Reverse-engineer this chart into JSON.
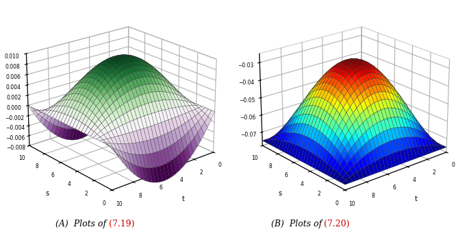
{
  "t_range": [
    0,
    10
  ],
  "x_range": [
    0,
    10
  ],
  "n_points": 30,
  "plot1": {
    "zlim": [
      -0.008,
      0.01
    ],
    "zticks": [
      -0.008,
      -0.006,
      -0.004,
      -0.002,
      0,
      0.002,
      0.004,
      0.006,
      0.008,
      0.01
    ],
    "xlabel": "t",
    "ylabel": "s",
    "colormap": "PRGn",
    "elev": 22,
    "azim": 50,
    "A": 0.0085,
    "caption_a": "(A)  Plots of ",
    "ref_a": "(7.19)"
  },
  "plot2": {
    "zlim": [
      -0.078,
      -0.025
    ],
    "zticks": [
      -0.07,
      -0.06,
      -0.05,
      -0.04,
      -0.03
    ],
    "xlabel": "t",
    "ylabel": "s",
    "colormap": "jet",
    "elev": 22,
    "azim": 50,
    "A": 0.048,
    "B": 0.075,
    "caption_b": "(B)  Plots of ",
    "ref_b": "(7.20)"
  },
  "background_color": "#ffffff",
  "caption_fontsize": 9,
  "ref_color": "#cc0000",
  "pane_color": [
    1.0,
    1.0,
    1.0,
    0.0
  ],
  "grid_linewidth": 0.25,
  "grid_color": "#333333"
}
